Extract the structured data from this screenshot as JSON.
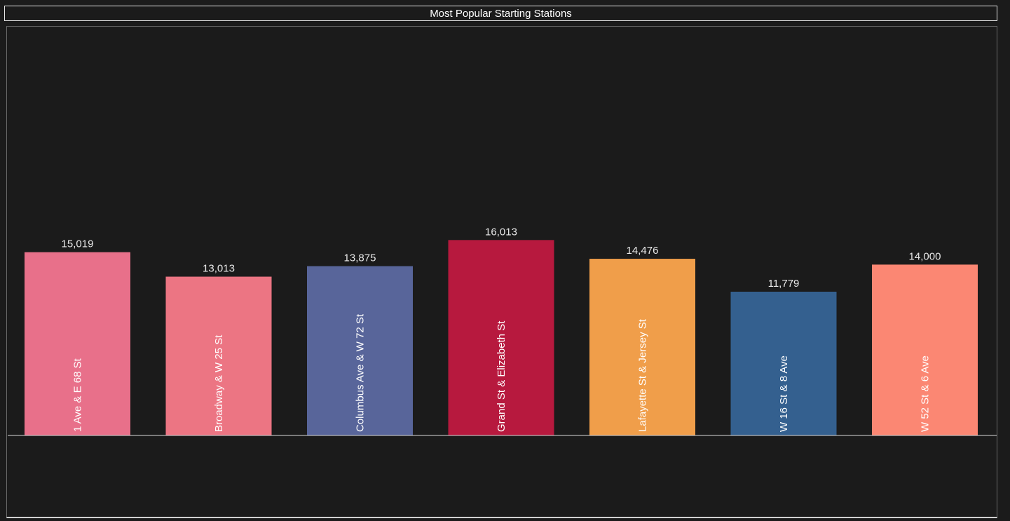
{
  "title": "Most Popular Starting Stations",
  "chart_data": {
    "type": "bar",
    "title": "Most Popular Starting Stations",
    "categories": [
      "1 Ave & E 68 St",
      "Broadway & W 25 St",
      "Columbus Ave & W 72 St",
      "Grand St & Elizabeth St",
      "Lafayette St & Jersey St",
      "W 16 St & 8 Ave",
      "W 52 St & 6 Ave"
    ],
    "values": [
      15019,
      13013,
      13875,
      16013,
      14476,
      11779,
      14000
    ],
    "value_labels": [
      "15,019",
      "13,013",
      "13,875",
      "16,013",
      "14,476",
      "11,779",
      "14,000"
    ],
    "colors": [
      "#e8708a",
      "#ec7583",
      "#58659a",
      "#b7193e",
      "#f09e4a",
      "#34608f",
      "#fb8773"
    ],
    "ylim": [
      0,
      33500
    ],
    "grid": false,
    "legend": "none"
  }
}
